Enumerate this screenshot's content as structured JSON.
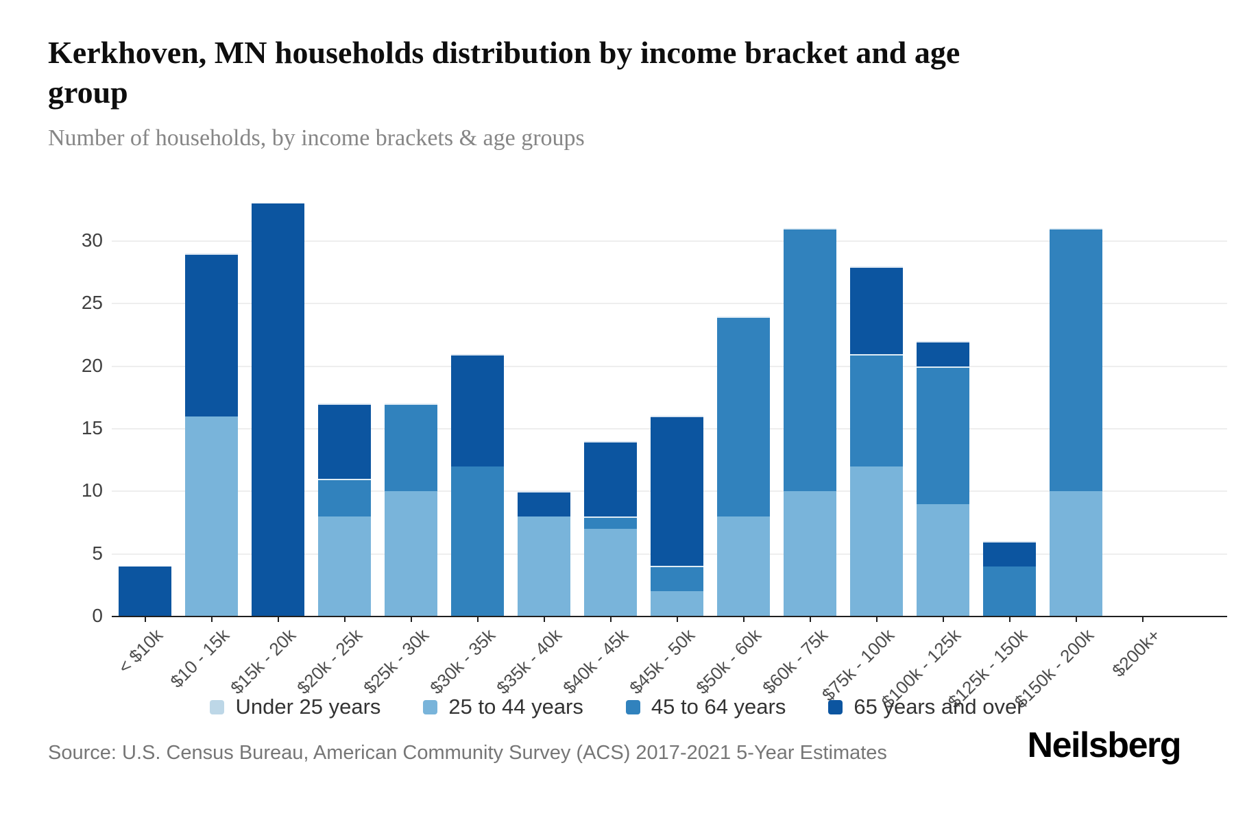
{
  "header": {
    "title": "Kerkhoven, MN households distribution by income bracket and age group",
    "subtitle": "Number of households, by income brackets & age groups"
  },
  "footer": {
    "source": "Source: U.S. Census Bureau, American Community Survey (ACS) 2017-2021 5-Year Estimates",
    "brand": "Neilsberg"
  },
  "chart_data": {
    "type": "bar",
    "stacked": true,
    "grid": true,
    "legend_position": "bottom",
    "ylim": [
      0,
      33
    ],
    "yticks": [
      0,
      5,
      10,
      15,
      20,
      25,
      30
    ],
    "categories": [
      "< $10k",
      "$10 - 15k",
      "$15k - 20k",
      "$20k - 25k",
      "$25k - 30k",
      "$30k - 35k",
      "$35k - 40k",
      "$40k - 45k",
      "$45k - 50k",
      "$50k - 60k",
      "$60k - 75k",
      "$75k - 100k",
      "$100k - 125k",
      "$125k - 150k",
      "$150k - 200k",
      "$200k+"
    ],
    "series": [
      {
        "name": "Under 25 years",
        "color": "#bdd7e7",
        "values": [
          0,
          0,
          0,
          0,
          0,
          0,
          0,
          0,
          0,
          0,
          0,
          0,
          0,
          0,
          0,
          0
        ]
      },
      {
        "name": "25 to 44 years",
        "color": "#79b4da",
        "values": [
          0,
          16,
          0,
          8,
          10,
          0,
          8,
          7,
          2,
          8,
          10,
          12,
          9,
          0,
          10,
          0
        ]
      },
      {
        "name": "45 to 64 years",
        "color": "#3182bd",
        "values": [
          0,
          0,
          0,
          3,
          7,
          12,
          0,
          1,
          2,
          16,
          21,
          9,
          11,
          4,
          21,
          0
        ]
      },
      {
        "name": "65 years and over",
        "color": "#0c55a0",
        "values": [
          4,
          13,
          33,
          6,
          0,
          9,
          2,
          6,
          12,
          0,
          0,
          7,
          2,
          2,
          0,
          0
        ]
      }
    ]
  }
}
